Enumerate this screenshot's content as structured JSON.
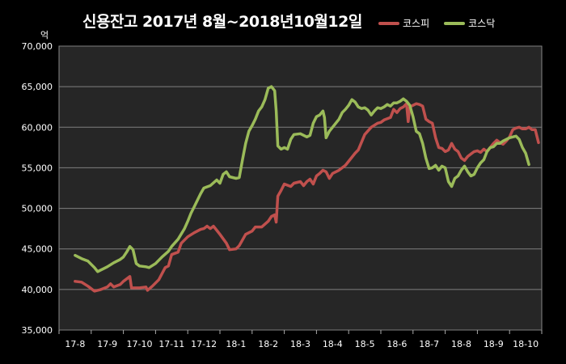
{
  "chart_data": {
    "type": "line",
    "title": "신용잔고 2017년 8월~2018년10월12일",
    "unit": "억",
    "ylim": [
      35000,
      70000
    ],
    "yticks": [
      "70,000",
      "65,000",
      "60,000",
      "55,000",
      "50,000",
      "45,000",
      "40,000",
      "35,000"
    ],
    "xticks": [
      "17-8",
      "17-9",
      "17-10",
      "17-11",
      "17-12",
      "18-1",
      "18-2",
      "18-3",
      "18-4",
      "18-5",
      "18-6",
      "18-7",
      "18-8",
      "18-9",
      "18-10"
    ],
    "grid": true,
    "legend": "top-right",
    "series": [
      {
        "name": "코스피",
        "color": "#c0504d",
        "values": [
          [
            0,
            41000
          ],
          [
            0.2,
            40900
          ],
          [
            0.4,
            40400
          ],
          [
            0.6,
            39800
          ],
          [
            0.8,
            40000
          ],
          [
            1.0,
            40300
          ],
          [
            1.1,
            40700
          ],
          [
            1.2,
            40300
          ],
          [
            1.4,
            40600
          ],
          [
            1.5,
            41000
          ],
          [
            1.6,
            41300
          ],
          [
            1.7,
            41600
          ],
          [
            1.75,
            40200
          ],
          [
            2.0,
            40200
          ],
          [
            2.2,
            40300
          ],
          [
            2.25,
            39900
          ],
          [
            2.4,
            40400
          ],
          [
            2.6,
            41200
          ],
          [
            2.8,
            42700
          ],
          [
            2.9,
            42900
          ],
          [
            3.0,
            44300
          ],
          [
            3.2,
            44600
          ],
          [
            3.3,
            45700
          ],
          [
            3.5,
            46500
          ],
          [
            3.7,
            47000
          ],
          [
            3.9,
            47400
          ],
          [
            4.0,
            47500
          ],
          [
            4.1,
            47800
          ],
          [
            4.2,
            47500
          ],
          [
            4.3,
            47800
          ],
          [
            4.4,
            47300
          ],
          [
            4.5,
            46800
          ],
          [
            4.7,
            45700
          ],
          [
            4.8,
            44900
          ],
          [
            5.0,
            45000
          ],
          [
            5.1,
            45400
          ],
          [
            5.3,
            46800
          ],
          [
            5.5,
            47200
          ],
          [
            5.6,
            47700
          ],
          [
            5.8,
            47700
          ],
          [
            6.0,
            48400
          ],
          [
            6.1,
            49000
          ],
          [
            6.2,
            49200
          ],
          [
            6.25,
            48300
          ],
          [
            6.3,
            51500
          ],
          [
            6.4,
            52200
          ],
          [
            6.5,
            53000
          ],
          [
            6.7,
            52700
          ],
          [
            6.8,
            53100
          ],
          [
            7.0,
            53300
          ],
          [
            7.1,
            52800
          ],
          [
            7.2,
            53300
          ],
          [
            7.3,
            53600
          ],
          [
            7.4,
            53000
          ],
          [
            7.5,
            54000
          ],
          [
            7.6,
            54300
          ],
          [
            7.7,
            54700
          ],
          [
            7.8,
            54500
          ],
          [
            7.9,
            53700
          ],
          [
            8.0,
            54300
          ],
          [
            8.2,
            54700
          ],
          [
            8.4,
            55300
          ],
          [
            8.6,
            56300
          ],
          [
            8.7,
            56800
          ],
          [
            8.8,
            57200
          ],
          [
            9.0,
            59100
          ],
          [
            9.2,
            60000
          ],
          [
            9.4,
            60500
          ],
          [
            9.5,
            60600
          ],
          [
            9.6,
            60900
          ],
          [
            9.8,
            61200
          ],
          [
            9.9,
            62200
          ],
          [
            10.0,
            61800
          ],
          [
            10.1,
            62300
          ],
          [
            10.2,
            62500
          ],
          [
            10.3,
            62900
          ],
          [
            10.35,
            60700
          ],
          [
            10.4,
            62500
          ],
          [
            10.5,
            62700
          ],
          [
            10.6,
            62900
          ],
          [
            10.7,
            62800
          ],
          [
            10.8,
            62600
          ],
          [
            10.9,
            61000
          ],
          [
            11.0,
            60700
          ],
          [
            11.1,
            60500
          ],
          [
            11.2,
            58700
          ],
          [
            11.3,
            57500
          ],
          [
            11.4,
            57400
          ],
          [
            11.5,
            57000
          ],
          [
            11.6,
            57200
          ],
          [
            11.7,
            58000
          ],
          [
            11.8,
            57300
          ],
          [
            11.9,
            57000
          ],
          [
            12.0,
            56200
          ],
          [
            12.1,
            55900
          ],
          [
            12.2,
            56400
          ],
          [
            12.3,
            56700
          ],
          [
            12.4,
            57000
          ],
          [
            12.5,
            57100
          ],
          [
            12.6,
            56900
          ],
          [
            12.7,
            57300
          ],
          [
            12.8,
            57000
          ],
          [
            12.9,
            57500
          ],
          [
            13.0,
            58000
          ],
          [
            13.1,
            58400
          ],
          [
            13.2,
            58100
          ],
          [
            13.3,
            57900
          ],
          [
            13.4,
            58300
          ],
          [
            13.5,
            58800
          ],
          [
            13.6,
            59700
          ],
          [
            13.7,
            59900
          ],
          [
            13.8,
            60000
          ],
          [
            13.9,
            59800
          ],
          [
            14.0,
            59800
          ],
          [
            14.1,
            60000
          ],
          [
            14.2,
            59700
          ],
          [
            14.3,
            59700
          ],
          [
            14.4,
            58100
          ]
        ]
      },
      {
        "name": "코스닥",
        "color": "#9bbb59",
        "values": [
          [
            0,
            44200
          ],
          [
            0.2,
            43800
          ],
          [
            0.4,
            43500
          ],
          [
            0.6,
            42700
          ],
          [
            0.7,
            42200
          ],
          [
            0.8,
            42400
          ],
          [
            1.0,
            42800
          ],
          [
            1.2,
            43300
          ],
          [
            1.4,
            43700
          ],
          [
            1.5,
            44000
          ],
          [
            1.6,
            44600
          ],
          [
            1.7,
            45300
          ],
          [
            1.8,
            44900
          ],
          [
            1.9,
            43200
          ],
          [
            2.0,
            42900
          ],
          [
            2.2,
            42800
          ],
          [
            2.3,
            42700
          ],
          [
            2.5,
            43200
          ],
          [
            2.7,
            44000
          ],
          [
            2.9,
            44700
          ],
          [
            3.0,
            45300
          ],
          [
            3.2,
            46200
          ],
          [
            3.4,
            47500
          ],
          [
            3.5,
            48400
          ],
          [
            3.6,
            49400
          ],
          [
            3.7,
            50200
          ],
          [
            3.9,
            51800
          ],
          [
            4.0,
            52500
          ],
          [
            4.2,
            52800
          ],
          [
            4.4,
            53500
          ],
          [
            4.5,
            53100
          ],
          [
            4.6,
            54200
          ],
          [
            4.7,
            54500
          ],
          [
            4.8,
            53900
          ],
          [
            5.0,
            53700
          ],
          [
            5.1,
            53800
          ],
          [
            5.2,
            56000
          ],
          [
            5.3,
            58000
          ],
          [
            5.4,
            59500
          ],
          [
            5.5,
            60200
          ],
          [
            5.6,
            61000
          ],
          [
            5.7,
            62000
          ],
          [
            5.8,
            62500
          ],
          [
            5.9,
            63400
          ],
          [
            6.0,
            64800
          ],
          [
            6.1,
            65000
          ],
          [
            6.2,
            64500
          ],
          [
            6.25,
            62000
          ],
          [
            6.3,
            57700
          ],
          [
            6.4,
            57300
          ],
          [
            6.5,
            57500
          ],
          [
            6.6,
            57300
          ],
          [
            6.7,
            58500
          ],
          [
            6.8,
            59100
          ],
          [
            7.0,
            59200
          ],
          [
            7.1,
            59000
          ],
          [
            7.2,
            58800
          ],
          [
            7.3,
            59000
          ],
          [
            7.4,
            60500
          ],
          [
            7.5,
            61300
          ],
          [
            7.6,
            61500
          ],
          [
            7.7,
            62000
          ],
          [
            7.75,
            61200
          ],
          [
            7.8,
            58700
          ],
          [
            7.9,
            59500
          ],
          [
            8.0,
            60000
          ],
          [
            8.2,
            61000
          ],
          [
            8.3,
            61800
          ],
          [
            8.4,
            62200
          ],
          [
            8.5,
            62700
          ],
          [
            8.6,
            63400
          ],
          [
            8.7,
            63100
          ],
          [
            8.8,
            62500
          ],
          [
            8.9,
            62300
          ],
          [
            9.0,
            62400
          ],
          [
            9.1,
            62100
          ],
          [
            9.2,
            61500
          ],
          [
            9.3,
            62000
          ],
          [
            9.4,
            62400
          ],
          [
            9.5,
            62300
          ],
          [
            9.6,
            62500
          ],
          [
            9.7,
            62800
          ],
          [
            9.8,
            62600
          ],
          [
            9.9,
            63000
          ],
          [
            10.0,
            63000
          ],
          [
            10.1,
            63200
          ],
          [
            10.2,
            63500
          ],
          [
            10.3,
            63200
          ],
          [
            10.4,
            62700
          ],
          [
            10.5,
            61300
          ],
          [
            10.6,
            59500
          ],
          [
            10.7,
            59200
          ],
          [
            10.8,
            58000
          ],
          [
            10.9,
            56200
          ],
          [
            11.0,
            54900
          ],
          [
            11.1,
            55000
          ],
          [
            11.2,
            55300
          ],
          [
            11.3,
            54700
          ],
          [
            11.4,
            55200
          ],
          [
            11.5,
            55000
          ],
          [
            11.6,
            53300
          ],
          [
            11.7,
            52700
          ],
          [
            11.8,
            53700
          ],
          [
            11.9,
            54000
          ],
          [
            12.0,
            54700
          ],
          [
            12.1,
            55200
          ],
          [
            12.2,
            54500
          ],
          [
            12.3,
            54000
          ],
          [
            12.4,
            54200
          ],
          [
            12.5,
            55000
          ],
          [
            12.6,
            55600
          ],
          [
            12.7,
            56000
          ],
          [
            12.8,
            57000
          ],
          [
            12.9,
            57500
          ],
          [
            13.0,
            57600
          ],
          [
            13.1,
            58000
          ],
          [
            13.2,
            58000
          ],
          [
            13.3,
            58300
          ],
          [
            13.4,
            58500
          ],
          [
            13.5,
            58700
          ],
          [
            13.6,
            58800
          ],
          [
            13.7,
            58900
          ],
          [
            13.8,
            58500
          ],
          [
            13.9,
            57500
          ],
          [
            14.0,
            56800
          ],
          [
            14.1,
            55400
          ]
        ]
      }
    ]
  }
}
